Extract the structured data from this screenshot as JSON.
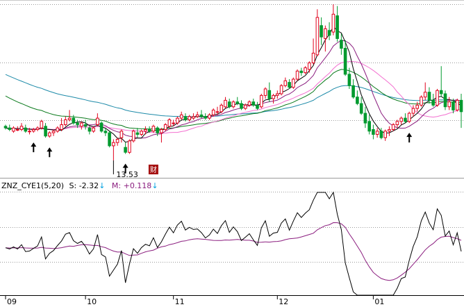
{
  "chart_data": [
    {
      "type": "candlestick",
      "panel": "price",
      "y_range": [
        12.6,
        23.2
      ],
      "grid": "dotted horizontal",
      "colors": {
        "up": "#e0001b",
        "down": "#009a2e",
        "ma5": "#000000",
        "ma10": "#8a1c7e",
        "ma20": "#f36fd0",
        "ma60": "#0a7a1c",
        "ma120": "#1c8aa8"
      },
      "annotations": {
        "low_label": "13.53",
        "financial_marker": "财"
      },
      "signal_arrows": [
        7,
        11,
        30,
        101
      ],
      "candles": [
        [
          15.6,
          15.7,
          15.4,
          15.5
        ],
        [
          15.5,
          15.7,
          15.3,
          15.4
        ],
        [
          15.3,
          15.6,
          15.2,
          15.5
        ],
        [
          15.4,
          15.6,
          15.3,
          15.4
        ],
        [
          15.4,
          15.8,
          15.3,
          15.6
        ],
        [
          15.5,
          15.7,
          15.2,
          15.3
        ],
        [
          15.3,
          15.5,
          15.1,
          15.3
        ],
        [
          15.3,
          15.5,
          15.2,
          15.4
        ],
        [
          15.4,
          15.6,
          15.3,
          15.5
        ],
        [
          15.5,
          16.0,
          15.4,
          15.9
        ],
        [
          15.6,
          15.8,
          14.9,
          15.0
        ],
        [
          15.0,
          15.3,
          14.9,
          15.2
        ],
        [
          15.2,
          15.4,
          15.0,
          15.3
        ],
        [
          15.3,
          15.6,
          15.2,
          15.5
        ],
        [
          15.4,
          16.1,
          15.3,
          15.7
        ],
        [
          15.7,
          16.2,
          15.6,
          16.0
        ],
        [
          16.0,
          16.6,
          15.9,
          16.1
        ],
        [
          16.1,
          16.3,
          15.7,
          15.8
        ],
        [
          15.8,
          16.0,
          15.5,
          15.7
        ],
        [
          15.6,
          15.9,
          15.4,
          15.8
        ],
        [
          15.7,
          16.0,
          15.4,
          15.6
        ],
        [
          15.5,
          15.6,
          15.1,
          15.3
        ],
        [
          15.3,
          15.6,
          15.2,
          15.5
        ],
        [
          15.7,
          16.4,
          15.6,
          16.1
        ],
        [
          15.8,
          15.9,
          15.2,
          15.3
        ],
        [
          15.3,
          15.5,
          15.0,
          15.2
        ],
        [
          15.2,
          15.3,
          14.3,
          14.4
        ],
        [
          14.4,
          14.8,
          13.5,
          14.6
        ],
        [
          14.6,
          14.9,
          14.4,
          14.8
        ],
        [
          14.9,
          15.4,
          14.6,
          15.3
        ],
        [
          14.3,
          14.6,
          13.9,
          14.0
        ],
        [
          14.0,
          14.8,
          13.9,
          14.7
        ],
        [
          14.7,
          15.4,
          14.6,
          15.3
        ],
        [
          15.2,
          15.5,
          14.9,
          15.1
        ],
        [
          15.1,
          15.4,
          15.0,
          15.3
        ],
        [
          15.3,
          15.6,
          15.1,
          15.4
        ],
        [
          15.4,
          15.6,
          15.2,
          15.3
        ],
        [
          15.3,
          15.7,
          15.2,
          15.6
        ],
        [
          15.5,
          15.6,
          15.0,
          15.2
        ],
        [
          15.2,
          15.5,
          14.6,
          15.4
        ],
        [
          15.4,
          15.8,
          15.3,
          15.7
        ],
        [
          15.6,
          16.1,
          15.5,
          16.0
        ],
        [
          15.8,
          16.0,
          15.6,
          15.8
        ],
        [
          15.8,
          16.2,
          15.7,
          16.1
        ],
        [
          16.1,
          16.5,
          16.0,
          16.3
        ],
        [
          16.2,
          16.4,
          15.9,
          16.0
        ],
        [
          16.0,
          16.3,
          15.9,
          16.2
        ],
        [
          16.1,
          16.4,
          16.0,
          16.2
        ],
        [
          16.2,
          16.5,
          16.1,
          16.3
        ],
        [
          16.3,
          16.6,
          16.1,
          16.2
        ],
        [
          16.2,
          16.4,
          16.0,
          16.1
        ],
        [
          16.1,
          16.4,
          16.0,
          16.3
        ],
        [
          16.3,
          16.7,
          16.2,
          16.6
        ],
        [
          16.5,
          16.8,
          16.3,
          16.5
        ],
        [
          16.5,
          17.0,
          16.4,
          16.9
        ],
        [
          16.8,
          17.4,
          16.7,
          17.2
        ],
        [
          17.1,
          17.3,
          16.7,
          16.8
        ],
        [
          16.8,
          17.2,
          16.7,
          17.1
        ],
        [
          17.1,
          17.4,
          16.9,
          17.0
        ],
        [
          17.0,
          17.2,
          16.6,
          16.7
        ],
        [
          16.7,
          17.0,
          16.6,
          16.9
        ],
        [
          16.9,
          17.2,
          16.8,
          17.1
        ],
        [
          17.1,
          17.3,
          16.8,
          16.9
        ],
        [
          16.9,
          17.1,
          16.6,
          16.7
        ],
        [
          16.8,
          17.6,
          16.7,
          17.5
        ],
        [
          17.5,
          18.0,
          17.3,
          17.9
        ],
        [
          17.8,
          18.3,
          17.1,
          17.3
        ],
        [
          17.3,
          17.6,
          17.0,
          17.5
        ],
        [
          17.5,
          17.8,
          17.3,
          17.6
        ],
        [
          17.6,
          18.2,
          17.5,
          18.1
        ],
        [
          18.1,
          18.6,
          18.0,
          18.4
        ],
        [
          18.3,
          18.5,
          17.9,
          18.0
        ],
        [
          18.0,
          18.6,
          17.9,
          18.5
        ],
        [
          18.5,
          19.1,
          18.4,
          19.0
        ],
        [
          19.0,
          19.2,
          18.7,
          18.9
        ],
        [
          18.9,
          19.3,
          18.8,
          19.2
        ],
        [
          19.1,
          19.6,
          18.9,
          19.5
        ],
        [
          19.5,
          21.0,
          19.4,
          20.1
        ],
        [
          20.0,
          22.8,
          19.9,
          22.3
        ],
        [
          21.8,
          22.3,
          20.6,
          21.1
        ],
        [
          21.0,
          21.8,
          20.2,
          21.6
        ],
        [
          21.5,
          22.0,
          20.9,
          21.2
        ],
        [
          21.4,
          23.1,
          21.2,
          22.5
        ],
        [
          22.4,
          23.0,
          20.8,
          21.0
        ],
        [
          20.9,
          21.3,
          20.0,
          20.4
        ],
        [
          20.4,
          20.9,
          18.7,
          18.8
        ],
        [
          18.8,
          19.2,
          17.9,
          18.1
        ],
        [
          18.1,
          18.5,
          17.3,
          17.4
        ],
        [
          17.4,
          17.8,
          16.9,
          17.0
        ],
        [
          17.0,
          17.4,
          16.3,
          16.4
        ],
        [
          16.4,
          16.8,
          15.5,
          15.8
        ],
        [
          15.9,
          16.3,
          15.1,
          15.3
        ],
        [
          15.4,
          15.7,
          14.8,
          15.1
        ],
        [
          15.1,
          15.5,
          14.9,
          15.3
        ],
        [
          15.3,
          15.5,
          14.8,
          14.9
        ],
        [
          14.9,
          15.4,
          14.7,
          15.3
        ],
        [
          15.3,
          15.6,
          15.0,
          15.4
        ],
        [
          15.4,
          15.8,
          15.3,
          15.7
        ],
        [
          15.7,
          16.0,
          15.5,
          15.9
        ],
        [
          15.9,
          16.2,
          15.7,
          16.1
        ],
        [
          16.1,
          16.4,
          15.8,
          15.9
        ],
        [
          15.9,
          16.5,
          15.8,
          16.4
        ],
        [
          16.4,
          16.9,
          16.2,
          16.7
        ],
        [
          16.7,
          17.1,
          16.5,
          16.9
        ],
        [
          16.9,
          17.5,
          16.8,
          17.4
        ],
        [
          17.4,
          18.3,
          17.2,
          17.7
        ],
        [
          17.7,
          18.0,
          17.0,
          17.2
        ],
        [
          17.2,
          17.6,
          16.8,
          16.9
        ],
        [
          16.9,
          17.9,
          16.8,
          17.8
        ],
        [
          17.8,
          19.3,
          17.4,
          17.6
        ],
        [
          17.6,
          17.8,
          16.6,
          16.8
        ],
        [
          16.8,
          17.4,
          16.6,
          17.1
        ],
        [
          17.1,
          17.3,
          16.4,
          16.6
        ],
        [
          16.6,
          17.3,
          16.5,
          17.2
        ],
        [
          17.2,
          17.6,
          15.5,
          16.5
        ]
      ]
    },
    {
      "type": "line",
      "panel": "indicator",
      "indicator_name": "ZNZ_CYE1(5,20)",
      "series": [
        {
          "name": "S",
          "label": "S: -2.32",
          "color": "#000000"
        },
        {
          "name": "M",
          "label": "M: +0.118",
          "color": "#8a1c7e"
        }
      ],
      "x_tick_labels": [
        {
          "label": "09",
          "bar": 0
        },
        {
          "label": "10",
          "bar": 20
        },
        {
          "label": "11",
          "bar": 42
        },
        {
          "label": "12",
          "bar": 68
        },
        {
          "label": "01",
          "bar": 92
        }
      ]
    }
  ]
}
